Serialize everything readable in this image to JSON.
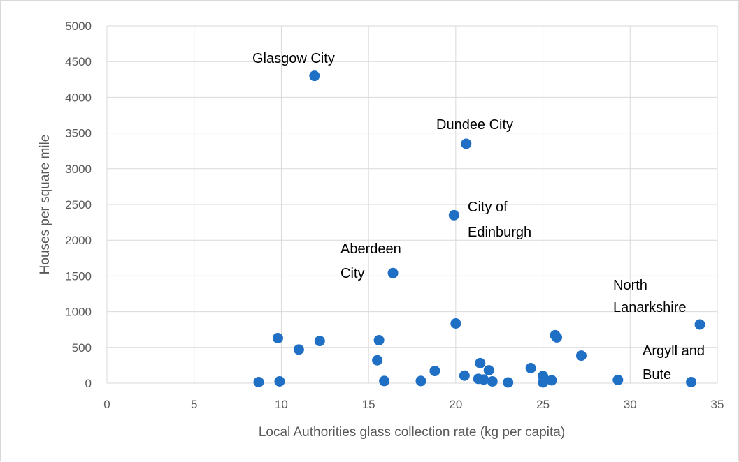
{
  "chart_data": {
    "type": "scatter",
    "title": "",
    "xlabel": "Local Authorities glass collection rate (kg per capita)",
    "ylabel": "Houses per square mile",
    "xlim": [
      0,
      35
    ],
    "ylim": [
      0,
      5000
    ],
    "x_ticks": [
      0,
      5,
      10,
      15,
      20,
      25,
      30,
      35
    ],
    "y_ticks": [
      0,
      500,
      1000,
      1500,
      2000,
      2500,
      3000,
      3500,
      4000,
      4500,
      5000
    ],
    "grid": true,
    "marker_color": "#1f6fc5",
    "points": [
      {
        "x": 11.9,
        "y": 4300
      },
      {
        "x": 20.6,
        "y": 3350
      },
      {
        "x": 19.9,
        "y": 2350
      },
      {
        "x": 16.4,
        "y": 1540
      },
      {
        "x": 34.0,
        "y": 820
      },
      {
        "x": 33.5,
        "y": 15
      },
      {
        "x": 8.7,
        "y": 15
      },
      {
        "x": 9.8,
        "y": 630
      },
      {
        "x": 9.9,
        "y": 25
      },
      {
        "x": 11.0,
        "y": 470
      },
      {
        "x": 12.2,
        "y": 590
      },
      {
        "x": 15.5,
        "y": 320
      },
      {
        "x": 15.6,
        "y": 600
      },
      {
        "x": 15.9,
        "y": 30
      },
      {
        "x": 18.0,
        "y": 30
      },
      {
        "x": 18.8,
        "y": 170
      },
      {
        "x": 20.0,
        "y": 835
      },
      {
        "x": 20.5,
        "y": 105
      },
      {
        "x": 21.3,
        "y": 60
      },
      {
        "x": 21.4,
        "y": 280
      },
      {
        "x": 21.6,
        "y": 50
      },
      {
        "x": 21.9,
        "y": 180
      },
      {
        "x": 22.1,
        "y": 25
      },
      {
        "x": 23.0,
        "y": 10
      },
      {
        "x": 24.3,
        "y": 210
      },
      {
        "x": 25.0,
        "y": 100
      },
      {
        "x": 25.0,
        "y": 10
      },
      {
        "x": 25.5,
        "y": 40
      },
      {
        "x": 25.7,
        "y": 670
      },
      {
        "x": 25.8,
        "y": 640
      },
      {
        "x": 27.2,
        "y": 385
      },
      {
        "x": 29.3,
        "y": 45
      }
    ],
    "annotations": [
      {
        "text": "Glasgow City"
      },
      {
        "text": "Dundee City"
      },
      {
        "text": "City of"
      },
      {
        "text": "Edinburgh"
      },
      {
        "text": "Aberdeen"
      },
      {
        "text": "City"
      },
      {
        "text": "North"
      },
      {
        "text": "Lanarkshire"
      },
      {
        "text": "Argyll and"
      },
      {
        "text": "Bute"
      }
    ]
  }
}
